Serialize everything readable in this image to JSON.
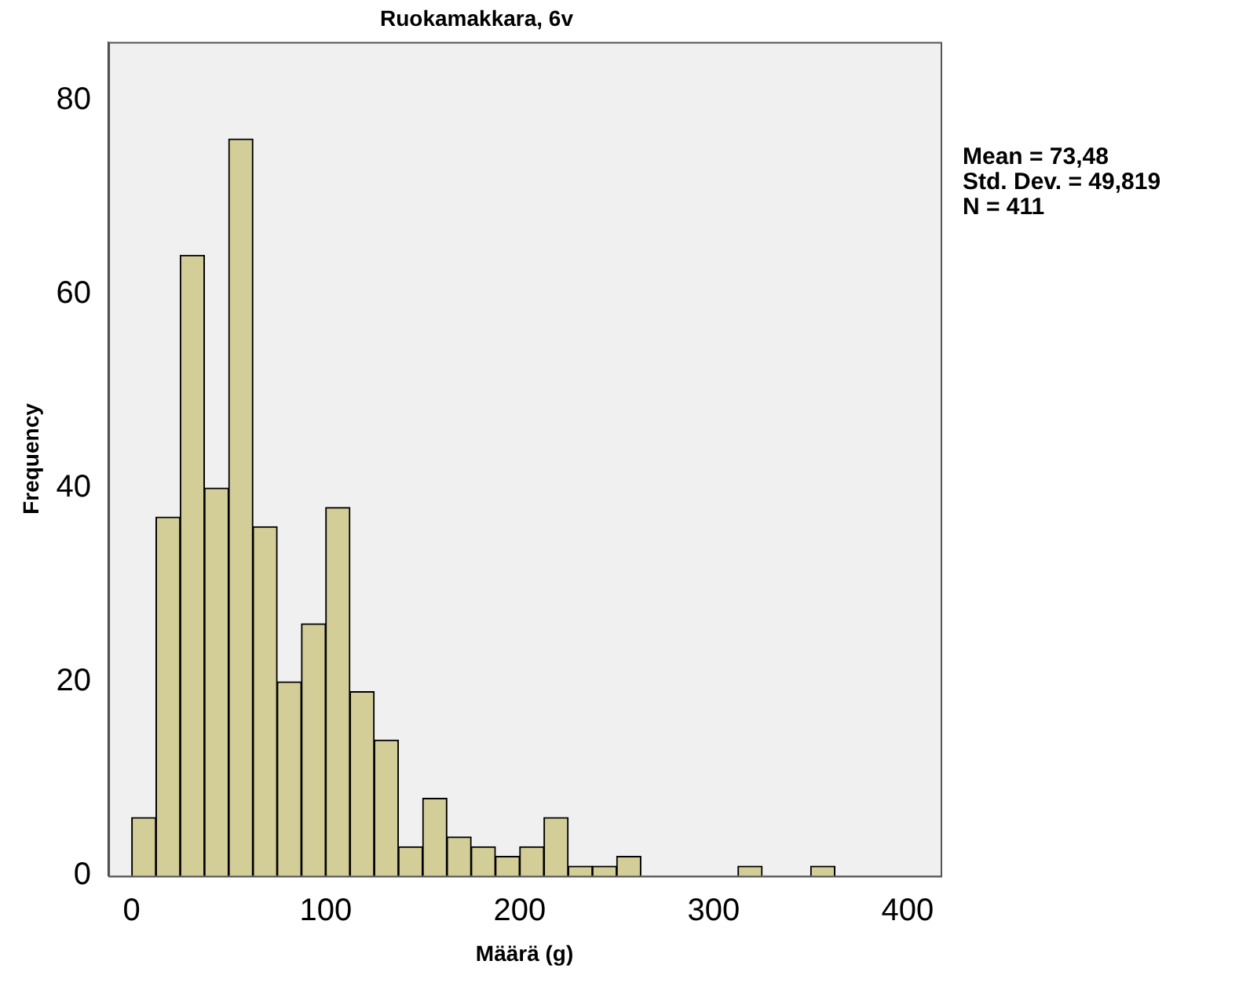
{
  "chart_data": {
    "type": "histogram",
    "title": "Ruokamakkara, 6v",
    "xlabel": "Määrä (g)",
    "ylabel": "Frequency",
    "bins": [
      0,
      12.5,
      25,
      37.5,
      50,
      62.5,
      75,
      87.5,
      100,
      112.5,
      125,
      137.5,
      150,
      162.5,
      175,
      187.5,
      200,
      212.5,
      225,
      237.5,
      250,
      262.5,
      275,
      287.5,
      300,
      312.5,
      325,
      337.5,
      350,
      362.5
    ],
    "values": [
      6,
      37,
      64,
      40,
      76,
      36,
      20,
      26,
      38,
      19,
      14,
      3,
      8,
      4,
      3,
      2,
      3,
      6,
      1,
      1,
      2,
      0,
      0,
      0,
      0,
      1,
      0,
      0,
      1
    ],
    "color": "#d3cd97",
    "xlim": [
      -12,
      417
    ],
    "xticks": [
      0,
      100,
      200,
      300,
      400
    ],
    "ylim": [
      0,
      86
    ],
    "yticks": [
      0,
      20,
      40,
      60,
      80
    ],
    "grid": false,
    "legend": false,
    "annotations": [
      "Mean = 73,48",
      "Std. Dev. = 49,819",
      "N = 411"
    ]
  }
}
